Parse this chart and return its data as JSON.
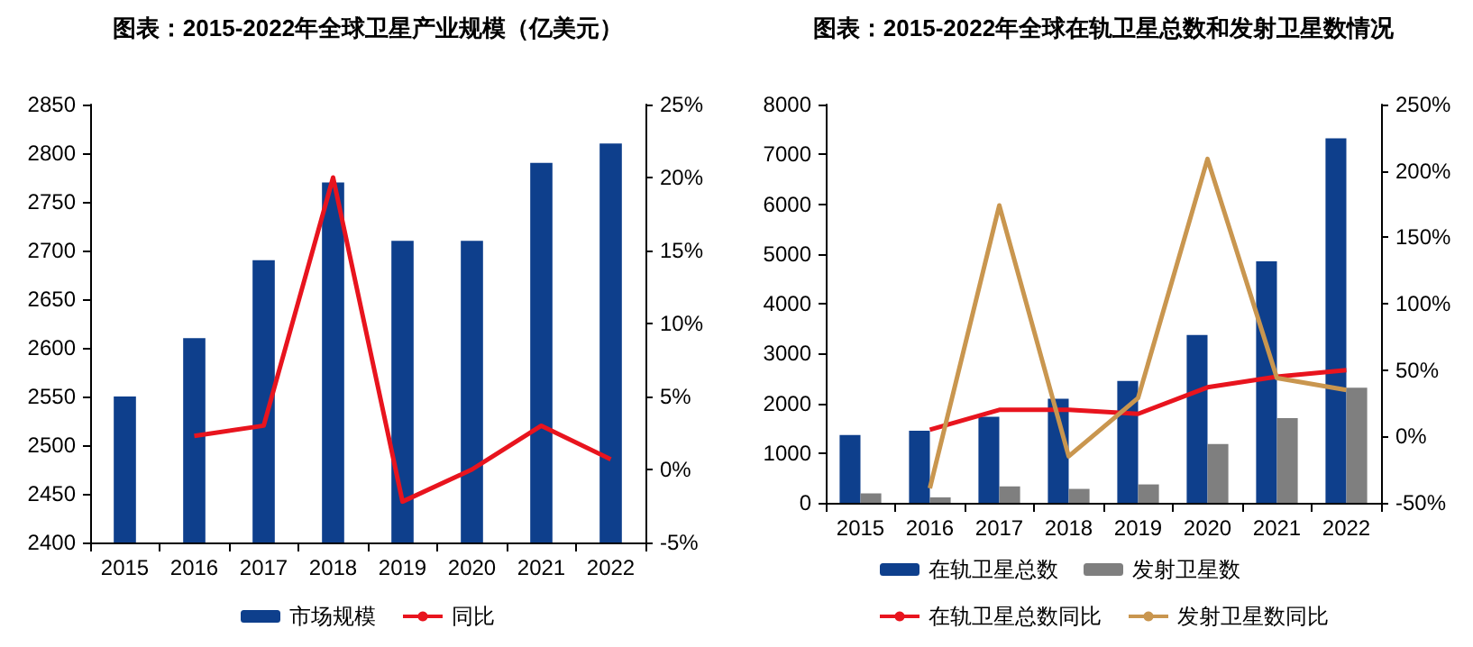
{
  "chart_data": [
    {
      "type": "bar",
      "title": "图表：2015-2022年全球卫星产业规模（亿美元）",
      "categories": [
        "2015",
        "2016",
        "2017",
        "2018",
        "2019",
        "2020",
        "2021",
        "2022"
      ],
      "series": [
        {
          "name": "市场规模",
          "color": "#0e3f8c",
          "values": [
            2550,
            2610,
            2690,
            2770,
            2710,
            2710,
            2790,
            2810
          ]
        },
        {
          "name": "同比",
          "type": "line",
          "axis": "y2",
          "color": "#e8141e",
          "values": [
            null,
            2.3,
            3.0,
            20,
            -2.2,
            0,
            3.0,
            0.7
          ]
        }
      ],
      "ylim": [
        2400,
        2850
      ],
      "yticks": [
        2400,
        2450,
        2500,
        2550,
        2600,
        2650,
        2700,
        2750,
        2800,
        2850
      ],
      "y2lim": [
        -5,
        25
      ],
      "y2ticks": [
        {
          "value": -5,
          "label": "-5%"
        },
        {
          "value": 0,
          "label": "0%"
        },
        {
          "value": 5,
          "label": "5%"
        },
        {
          "value": 10,
          "label": "10%"
        },
        {
          "value": 15,
          "label": "15%"
        },
        {
          "value": 20,
          "label": "20%"
        },
        {
          "value": 25,
          "label": "25%"
        }
      ],
      "grid": false,
      "legend": "bottom",
      "marker": "none",
      "line_style": "solid"
    },
    {
      "type": "bar",
      "title": "图表：2015-2022年全球在轨卫星总数和发射卫星数情况",
      "categories": [
        "2015",
        "2016",
        "2017",
        "2018",
        "2019",
        "2020",
        "2021",
        "2022"
      ],
      "series": [
        {
          "name": "在轨卫星总数",
          "color": "#0e3f8c",
          "values": [
            1360,
            1450,
            1730,
            2090,
            2450,
            3370,
            4850,
            7320
          ]
        },
        {
          "name": "发射卫星数",
          "color": "#7f7f7f",
          "values": [
            190,
            110,
            330,
            280,
            370,
            1180,
            1700,
            2310
          ]
        },
        {
          "name": "在轨卫星总数同比",
          "type": "line",
          "axis": "y2",
          "color": "#e8141e",
          "values": [
            null,
            5,
            20,
            20,
            17,
            37,
            45,
            50
          ]
        },
        {
          "name": "发射卫星数同比",
          "type": "line",
          "axis": "y2",
          "color": "#c9964f",
          "values": [
            null,
            -39,
            174,
            -15,
            29,
            209,
            44,
            35
          ]
        }
      ],
      "ylim": [
        0,
        8000
      ],
      "yticks": [
        0,
        1000,
        2000,
        3000,
        4000,
        5000,
        6000,
        7000,
        8000
      ],
      "y2lim": [
        -50,
        250
      ],
      "y2ticks": [
        {
          "value": -50,
          "label": "-50%"
        },
        {
          "value": 0,
          "label": "0%"
        },
        {
          "value": 50,
          "label": "50%"
        },
        {
          "value": 100,
          "label": "100%"
        },
        {
          "value": 150,
          "label": "150%"
        },
        {
          "value": 200,
          "label": "200%"
        },
        {
          "value": 250,
          "label": "250%"
        }
      ],
      "grid": false,
      "legend": "bottom",
      "marker": "none",
      "line_style": "solid"
    }
  ]
}
